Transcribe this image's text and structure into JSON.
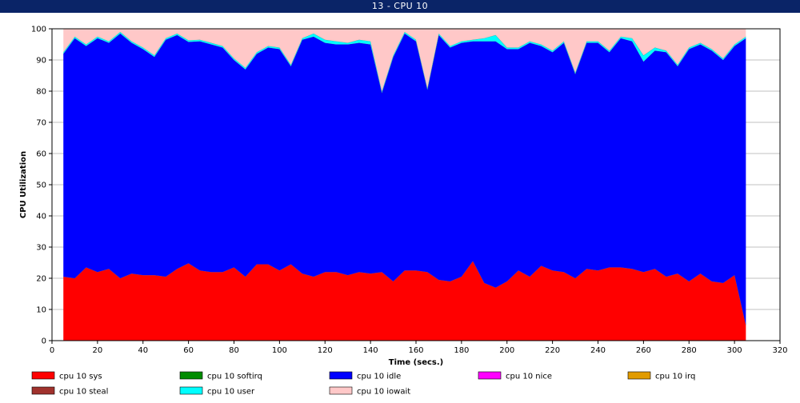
{
  "window": {
    "title": "13 - CPU 10"
  },
  "chart_data": {
    "type": "area",
    "stacked": true,
    "xlabel": "Time (secs.)",
    "ylabel": "CPU Utilization",
    "xlim": [
      0,
      320
    ],
    "ylim": [
      0,
      100
    ],
    "x_ticks": [
      0,
      20,
      40,
      60,
      80,
      100,
      120,
      140,
      160,
      180,
      200,
      220,
      240,
      260,
      280,
      300,
      320
    ],
    "y_ticks": [
      0,
      10,
      20,
      30,
      40,
      50,
      60,
      70,
      80,
      90,
      100
    ],
    "grid": "horizontal",
    "legend_position": "bottom",
    "x": [
      5,
      10,
      15,
      20,
      25,
      30,
      35,
      40,
      45,
      50,
      55,
      60,
      65,
      70,
      75,
      80,
      85,
      90,
      95,
      100,
      105,
      110,
      115,
      120,
      125,
      130,
      135,
      140,
      145,
      150,
      155,
      160,
      165,
      170,
      175,
      180,
      185,
      190,
      195,
      200,
      205,
      210,
      215,
      220,
      225,
      230,
      235,
      240,
      245,
      250,
      255,
      260,
      265,
      270,
      275,
      280,
      285,
      290,
      295,
      300,
      305
    ],
    "series": [
      {
        "name": "cpu 10 sys",
        "color": "#ff0000",
        "values": [
          20.5,
          20,
          23.5,
          22,
          23,
          20,
          21.5,
          21,
          21,
          20.5,
          23,
          24.8,
          22.5,
          22,
          22,
          23.5,
          20.5,
          24.5,
          24.5,
          22.5,
          24.5,
          21.5,
          20.5,
          22,
          22,
          21,
          22,
          21.5,
          22,
          19,
          22.5,
          22.5,
          22,
          19.5,
          19,
          20.5,
          25.5,
          18.5,
          17,
          19,
          22.5,
          20.5,
          24,
          22.5,
          22,
          20,
          23,
          22.5,
          23.5,
          23.5,
          23,
          22,
          23,
          20.5,
          21.5,
          19,
          21.5,
          19,
          18.5,
          21,
          5
        ]
      },
      {
        "name": "cpu 10 softirq",
        "color": "#008c00",
        "values": [
          0,
          0,
          0,
          0,
          0,
          0,
          0,
          0,
          0,
          0,
          0,
          0,
          0,
          0,
          0,
          0,
          0,
          0,
          0,
          0,
          0,
          0,
          0,
          0,
          0,
          0,
          0,
          0,
          0,
          0,
          0,
          0,
          0,
          0,
          0,
          0,
          0,
          0,
          0,
          0,
          0,
          0,
          0,
          0,
          0,
          0,
          0,
          0,
          0,
          0,
          0,
          0,
          0,
          0,
          0,
          0,
          0,
          0,
          0,
          0,
          0
        ]
      },
      {
        "name": "cpu 10 idle",
        "color": "#0000ff",
        "values": [
          71.5,
          77,
          71,
          75,
          72.5,
          78.5,
          74,
          72.5,
          70,
          76,
          75,
          71,
          73.5,
          73,
          72,
          66.5,
          66.5,
          67.5,
          69.5,
          71,
          63.5,
          75,
          77,
          73.5,
          73,
          74,
          73.5,
          73.5,
          57.5,
          72,
          76,
          73.5,
          58.5,
          78.5,
          75,
          75,
          70.5,
          77.5,
          79,
          74.5,
          71,
          75,
          70.5,
          70,
          73.5,
          65.5,
          72.5,
          73,
          69,
          73.5,
          73,
          67.5,
          70,
          72,
          66.5,
          74.5,
          73.5,
          74,
          71.5,
          73.5,
          92
        ]
      },
      {
        "name": "cpu 10 nice",
        "color": "#ff00ff",
        "values": [
          0,
          0,
          0,
          0,
          0,
          0,
          0,
          0,
          0,
          0,
          0,
          0,
          0,
          0,
          0,
          0,
          0,
          0,
          0,
          0,
          0,
          0,
          0,
          0,
          0,
          0,
          0,
          0,
          0,
          0,
          0,
          0,
          0,
          0,
          0,
          0,
          0,
          0,
          0,
          0,
          0,
          0,
          0,
          0,
          0,
          0,
          0,
          0,
          0,
          0,
          0,
          0,
          0,
          0,
          0,
          0,
          0,
          0,
          0,
          0,
          0
        ]
      },
      {
        "name": "cpu 10 irq",
        "color": "#e19b00",
        "values": [
          0,
          0,
          0,
          0,
          0,
          0,
          0,
          0,
          0,
          0,
          0,
          0,
          0,
          0,
          0,
          0,
          0,
          0,
          0,
          0,
          0,
          0,
          0,
          0,
          0,
          0,
          0,
          0,
          0,
          0,
          0,
          0,
          0,
          0,
          0,
          0,
          0,
          0,
          0,
          0,
          0,
          0,
          0,
          0,
          0,
          0,
          0,
          0,
          0,
          0,
          0,
          0,
          0,
          0,
          0,
          0,
          0,
          0,
          0,
          0,
          0
        ]
      },
      {
        "name": "cpu 10 steal",
        "color": "#a0322d",
        "values": [
          0,
          0,
          0,
          0,
          0,
          0,
          0,
          0,
          0,
          0,
          0,
          0,
          0,
          0,
          0,
          0,
          0,
          0,
          0,
          0,
          0,
          0,
          0,
          0,
          0,
          0,
          0,
          0,
          0,
          0,
          0,
          0,
          0,
          0,
          0,
          0,
          0,
          0,
          0,
          0,
          0,
          0,
          0,
          0,
          0,
          0,
          0,
          0,
          0,
          0,
          0,
          0,
          0,
          0,
          0,
          0,
          0,
          0,
          0,
          0,
          0
        ]
      },
      {
        "name": "cpu 10 user",
        "color": "#00ffff",
        "values": [
          0.5,
          0.5,
          0.5,
          0.5,
          0.5,
          0.5,
          0.5,
          0.5,
          0.5,
          0.5,
          0.5,
          0.5,
          0.5,
          0.5,
          0.5,
          0.5,
          0.5,
          0.5,
          0.5,
          0.5,
          0.5,
          0.5,
          1,
          1,
          1,
          0.5,
          1,
          1,
          0.5,
          0.5,
          0.5,
          0.5,
          0.5,
          0.5,
          0.5,
          0.5,
          0.5,
          1,
          2,
          0.5,
          0.5,
          0.5,
          0.5,
          0.5,
          0.5,
          0.5,
          0.5,
          0.5,
          0.5,
          0.5,
          1,
          2,
          1,
          0.5,
          0.5,
          0.5,
          0.5,
          0.5,
          0.5,
          0.5,
          0.5
        ]
      },
      {
        "name": "cpu 10 iowait",
        "color": "#ffc8c8",
        "values": [
          7.5,
          2.5,
          5,
          2.5,
          4,
          1,
          4,
          6,
          8.5,
          3,
          1.5,
          3.7,
          3.5,
          4.5,
          5.5,
          9.5,
          12.5,
          7.5,
          5.5,
          6,
          11.5,
          3,
          1.5,
          3.5,
          4,
          4.5,
          3.5,
          4,
          20,
          8.5,
          1,
          3.5,
          19,
          1.5,
          5.5,
          4,
          3.5,
          3,
          2,
          6,
          6,
          4,
          5,
          7,
          4,
          14,
          4,
          4,
          7,
          2.5,
          3,
          8.5,
          6,
          7,
          11.5,
          6,
          4.5,
          6.5,
          9.5,
          5,
          2.5
        ]
      }
    ]
  }
}
